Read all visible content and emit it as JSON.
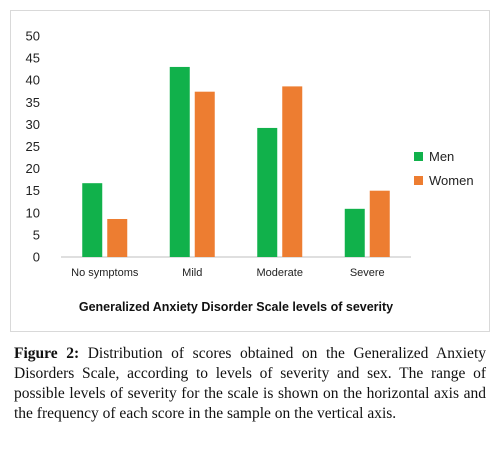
{
  "chart_data": {
    "type": "bar",
    "categories": [
      "No symptoms",
      "Mild",
      "Moderate",
      "Severe"
    ],
    "series": [
      {
        "name": "Men",
        "values": [
          16.7,
          43.0,
          29.2,
          10.9
        ],
        "color": "#11b14b"
      },
      {
        "name": "Women",
        "values": [
          8.6,
          37.4,
          38.6,
          15.0
        ],
        "color": "#ed7d31"
      }
    ],
    "y_ticks": [
      "0",
      "5",
      "10",
      "15",
      "20",
      "25",
      "30",
      "35",
      "40",
      "45",
      "50"
    ],
    "ylim": [
      0,
      50
    ],
    "xlabel": "Generalized Anxiety Disorder Scale levels of severity",
    "ylabel": "",
    "title": "",
    "grid": false,
    "legend_position": "right"
  },
  "caption": {
    "label": "Figure 2:",
    "text": "Distribution of scores obtained on the Generalized Anxiety Disorders Scale, according to levels of severity and sex. The range of possible levels of severity for the scale is shown on the horizontal axis and the frequency of each score in the sample on the vertical axis."
  }
}
